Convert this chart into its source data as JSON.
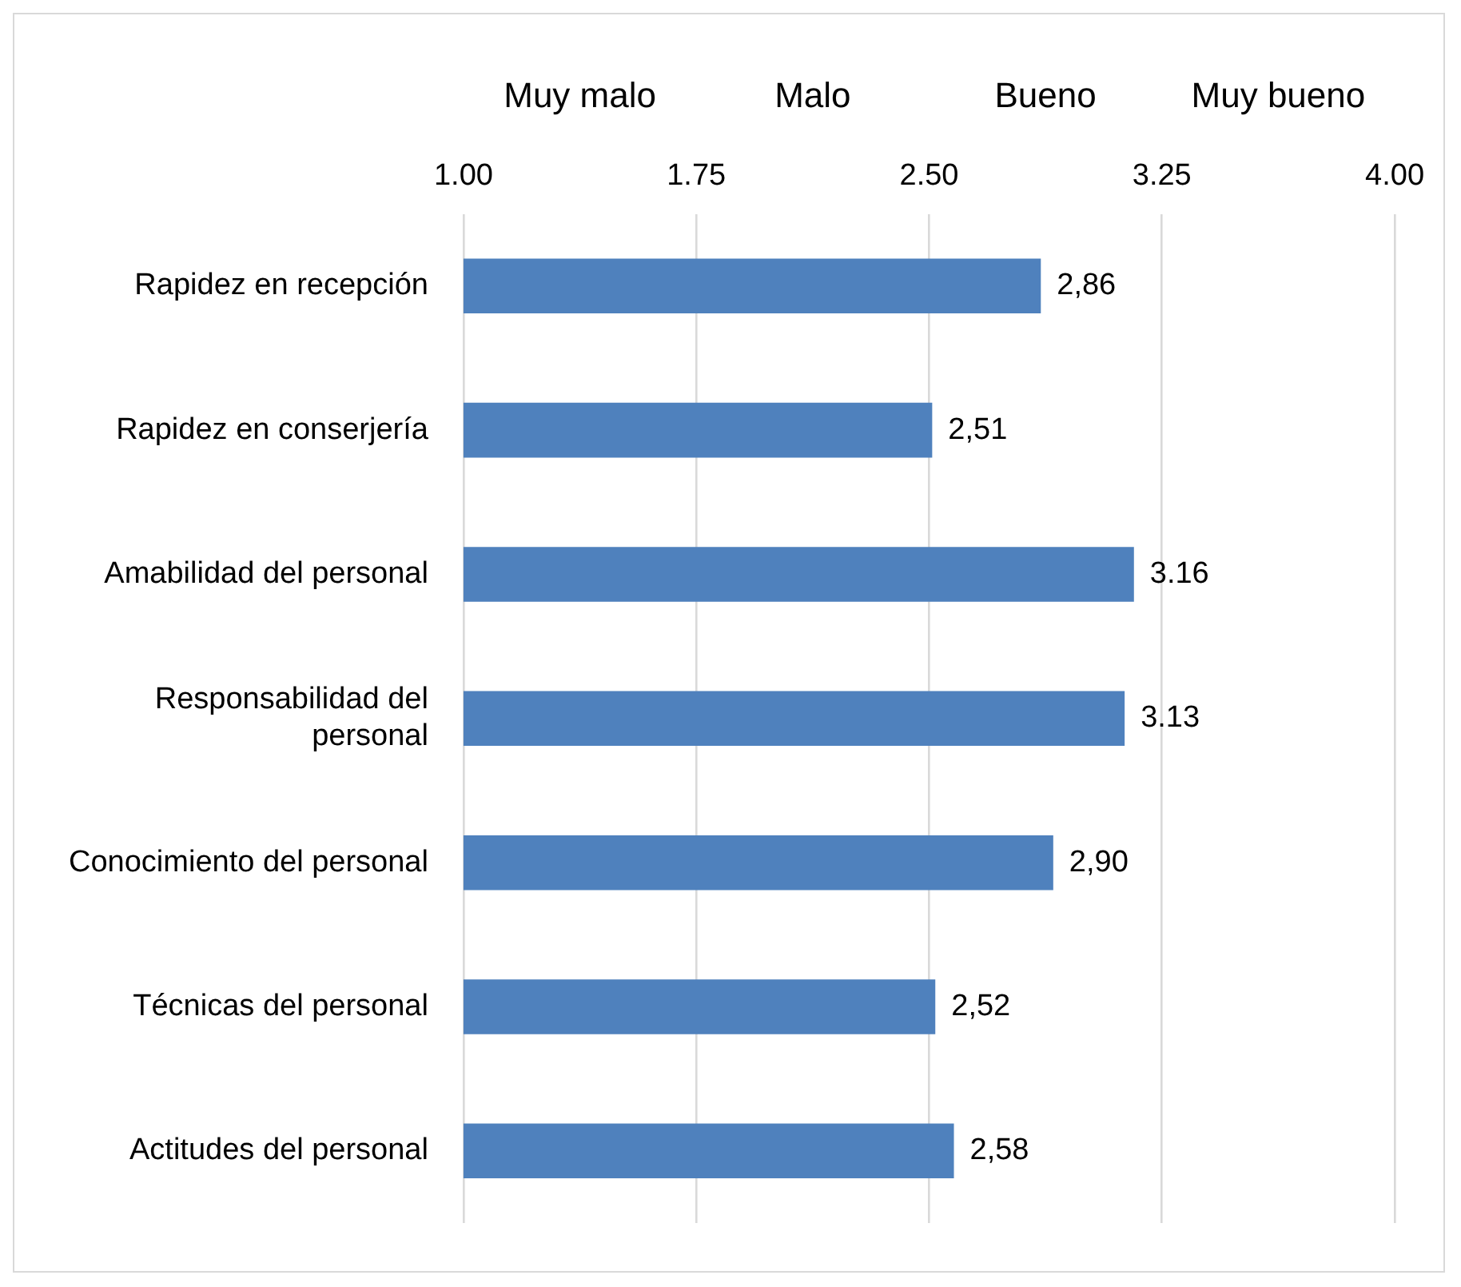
{
  "chart_data": {
    "type": "bar",
    "orientation": "horizontal",
    "categories": [
      "Rapidez en recepción",
      "Rapidez en conserjería",
      "Amabilidad del personal",
      "Responsabilidad del personal",
      "Conocimiento del personal",
      "Técnicas del personal",
      "Actitudes del personal"
    ],
    "values": [
      2.86,
      2.51,
      3.16,
      3.13,
      2.9,
      2.52,
      2.58
    ],
    "value_labels": [
      "2,86",
      "2,51",
      "3.16",
      "3.13",
      "2,90",
      "2,52",
      "2,58"
    ],
    "color": "#4f81bd",
    "xlim": [
      1,
      4
    ],
    "xticks": [
      {
        "value": 1,
        "label": "1.00"
      },
      {
        "value": 1.75,
        "label": "1.75"
      },
      {
        "value": 2.5,
        "label": "2.50"
      },
      {
        "value": 3.25,
        "label": "3.25"
      },
      {
        "value": 4,
        "label": "4.00"
      }
    ],
    "annotations": [
      "Muy malo",
      "Malo",
      "Bueno",
      "Muy bueno"
    ],
    "grid": "x",
    "legend": false
  }
}
